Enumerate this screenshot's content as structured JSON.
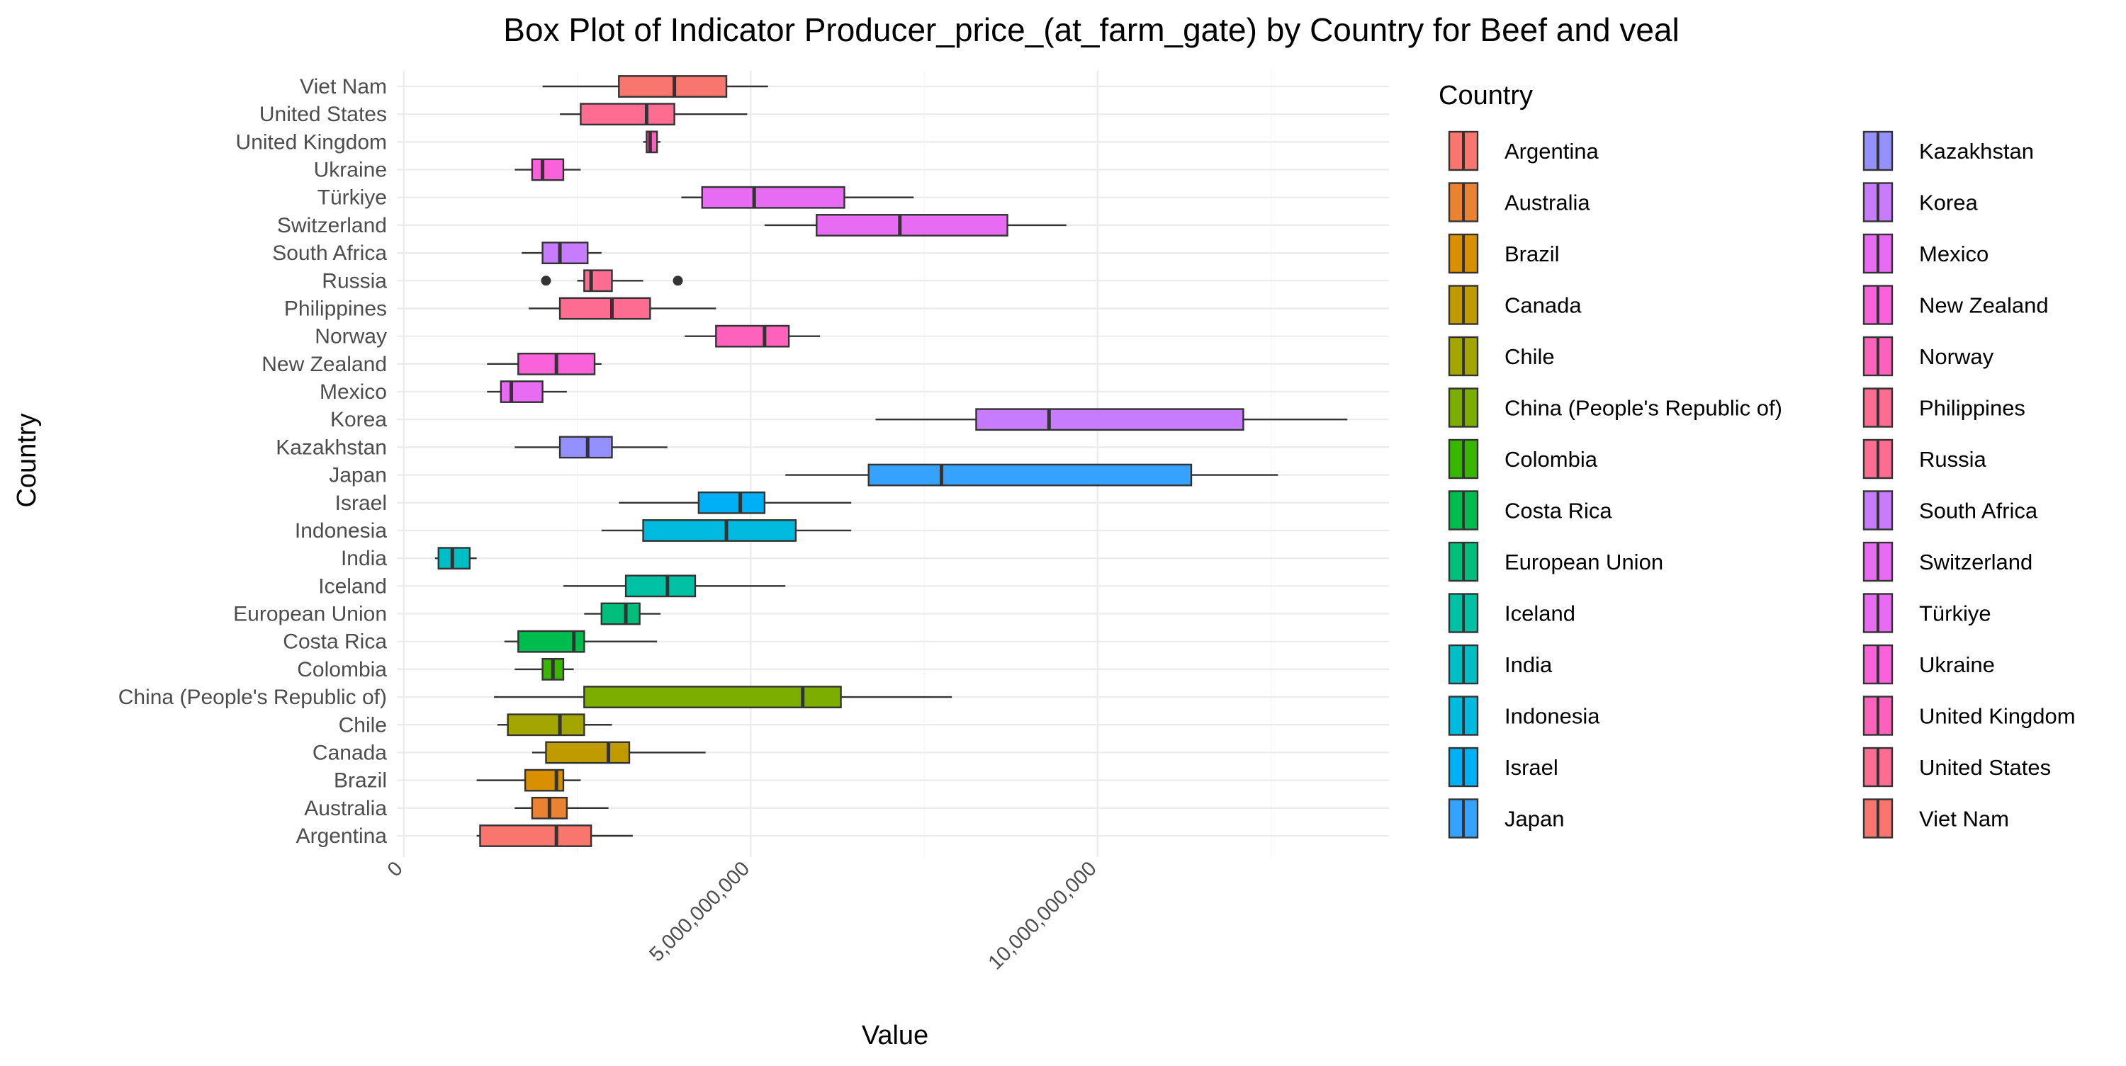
{
  "chart_data": {
    "type": "boxplot",
    "orientation": "horizontal",
    "title": "Box Plot of Indicator Producer_price_(at_farm_gate) by Country for Beef and veal",
    "xlabel": "Value",
    "ylabel": "Country",
    "xlim": [
      -100000000,
      14200000000
    ],
    "x_ticks": [
      {
        "value": 0,
        "label": "0"
      },
      {
        "value": 5000000000,
        "label": "5,000,000,000"
      },
      {
        "value": 10000000000,
        "label": "10,000,000,000"
      }
    ],
    "grid": true,
    "legend": {
      "title": "Country",
      "placement": "right"
    },
    "series": [
      {
        "name": "Argentina",
        "color": "#F8766D",
        "whisker_low": 1050000000,
        "q1": 1100000000,
        "median": 2200000000,
        "q3": 2700000000,
        "whisker_high": 3300000000,
        "outliers": []
      },
      {
        "name": "Australia",
        "color": "#EA8331",
        "whisker_low": 1600000000,
        "q1": 1850000000,
        "median": 2100000000,
        "q3": 2350000000,
        "whisker_high": 2950000000,
        "outliers": []
      },
      {
        "name": "Brazil",
        "color": "#D89000",
        "whisker_low": 1050000000,
        "q1": 1750000000,
        "median": 2200000000,
        "q3": 2300000000,
        "whisker_high": 2550000000,
        "outliers": []
      },
      {
        "name": "Canada",
        "color": "#C09B00",
        "whisker_low": 1850000000,
        "q1": 2050000000,
        "median": 2950000000,
        "q3": 3250000000,
        "whisker_high": 4350000000,
        "outliers": []
      },
      {
        "name": "Chile",
        "color": "#A3A500",
        "whisker_low": 1350000000,
        "q1": 1500000000,
        "median": 2250000000,
        "q3": 2600000000,
        "whisker_high": 3000000000,
        "outliers": []
      },
      {
        "name": "China (People's Republic of)",
        "color": "#7CAE00",
        "whisker_low": 1300000000,
        "q1": 2600000000,
        "median": 5750000000,
        "q3": 6300000000,
        "whisker_high": 7900000000,
        "outliers": []
      },
      {
        "name": "Colombia",
        "color": "#39B600",
        "whisker_low": 1600000000,
        "q1": 2000000000,
        "median": 2150000000,
        "q3": 2300000000,
        "whisker_high": 2450000000,
        "outliers": []
      },
      {
        "name": "Costa Rica",
        "color": "#00BB4E",
        "whisker_low": 1450000000,
        "q1": 1650000000,
        "median": 2450000000,
        "q3": 2600000000,
        "whisker_high": 3650000000,
        "outliers": []
      },
      {
        "name": "European Union",
        "color": "#00BF7D",
        "whisker_low": 2600000000,
        "q1": 2850000000,
        "median": 3200000000,
        "q3": 3400000000,
        "whisker_high": 3700000000,
        "outliers": []
      },
      {
        "name": "Iceland",
        "color": "#00C1A3",
        "whisker_low": 2300000000,
        "q1": 3200000000,
        "median": 3800000000,
        "q3": 4200000000,
        "whisker_high": 5500000000,
        "outliers": []
      },
      {
        "name": "India",
        "color": "#00BFC4",
        "whisker_low": 450000000,
        "q1": 500000000,
        "median": 700000000,
        "q3": 950000000,
        "whisker_high": 1050000000,
        "outliers": []
      },
      {
        "name": "Indonesia",
        "color": "#00BAE0",
        "whisker_low": 2850000000,
        "q1": 3450000000,
        "median": 4650000000,
        "q3": 5650000000,
        "whisker_high": 6450000000,
        "outliers": []
      },
      {
        "name": "Israel",
        "color": "#00B0F6",
        "whisker_low": 3100000000,
        "q1": 4250000000,
        "median": 4850000000,
        "q3": 5200000000,
        "whisker_high": 6450000000,
        "outliers": []
      },
      {
        "name": "Japan",
        "color": "#35A2FF",
        "whisker_low": 5500000000,
        "q1": 6700000000,
        "median": 7750000000,
        "q3": 11350000000,
        "whisker_high": 12600000000,
        "outliers": []
      },
      {
        "name": "Kazakhstan",
        "color": "#9590FF",
        "whisker_low": 1600000000,
        "q1": 2250000000,
        "median": 2650000000,
        "q3": 3000000000,
        "whisker_high": 3800000000,
        "outliers": []
      },
      {
        "name": "Korea",
        "color": "#C77CFF",
        "whisker_low": 6800000000,
        "q1": 8250000000,
        "median": 9300000000,
        "q3": 12100000000,
        "whisker_high": 13600000000,
        "outliers": []
      },
      {
        "name": "Mexico",
        "color": "#E76BF3",
        "whisker_low": 1200000000,
        "q1": 1400000000,
        "median": 1550000000,
        "q3": 2000000000,
        "whisker_high": 2350000000,
        "outliers": []
      },
      {
        "name": "New Zealand",
        "color": "#FA62DB",
        "whisker_low": 1200000000,
        "q1": 1650000000,
        "median": 2200000000,
        "q3": 2750000000,
        "whisker_high": 2850000000,
        "outliers": []
      },
      {
        "name": "Norway",
        "color": "#FF62BC",
        "whisker_low": 4050000000,
        "q1": 4500000000,
        "median": 5200000000,
        "q3": 5550000000,
        "whisker_high": 6000000000,
        "outliers": []
      },
      {
        "name": "Philippines",
        "color": "#FF6C91",
        "whisker_low": 1800000000,
        "q1": 2250000000,
        "median": 3000000000,
        "q3": 3550000000,
        "whisker_high": 4500000000,
        "outliers": []
      },
      {
        "name": "Russia",
        "color": "#FF6C91",
        "whisker_low": 2500000000,
        "q1": 2600000000,
        "median": 2700000000,
        "q3": 3000000000,
        "whisker_high": 3450000000,
        "outliers": [
          2050000000,
          3950000000
        ]
      },
      {
        "name": "South Africa",
        "color": "#C77CFF",
        "whisker_low": 1700000000,
        "q1": 2000000000,
        "median": 2250000000,
        "q3": 2650000000,
        "whisker_high": 2850000000,
        "outliers": []
      },
      {
        "name": "Switzerland",
        "color": "#E76BF3",
        "whisker_low": 5200000000,
        "q1": 5950000000,
        "median": 7150000000,
        "q3": 8700000000,
        "whisker_high": 9550000000,
        "outliers": []
      },
      {
        "name": "Türkiye",
        "color": "#E76BF3",
        "whisker_low": 4000000000,
        "q1": 4300000000,
        "median": 5050000000,
        "q3": 6350000000,
        "whisker_high": 7350000000,
        "outliers": []
      },
      {
        "name": "Ukraine",
        "color": "#FA62DB",
        "whisker_low": 1600000000,
        "q1": 1850000000,
        "median": 2000000000,
        "q3": 2300000000,
        "whisker_high": 2550000000,
        "outliers": []
      },
      {
        "name": "United Kingdom",
        "color": "#FF62BC",
        "whisker_low": 3450000000,
        "q1": 3500000000,
        "median": 3550000000,
        "q3": 3650000000,
        "whisker_high": 3700000000,
        "outliers": []
      },
      {
        "name": "United States",
        "color": "#FF6C91",
        "whisker_low": 2250000000,
        "q1": 2550000000,
        "median": 3500000000,
        "q3": 3900000000,
        "whisker_high": 4950000000,
        "outliers": []
      },
      {
        "name": "Viet Nam",
        "color": "#F8766D",
        "whisker_low": 2000000000,
        "q1": 3100000000,
        "median": 3900000000,
        "q3": 4650000000,
        "whisker_high": 5250000000,
        "outliers": []
      }
    ]
  }
}
